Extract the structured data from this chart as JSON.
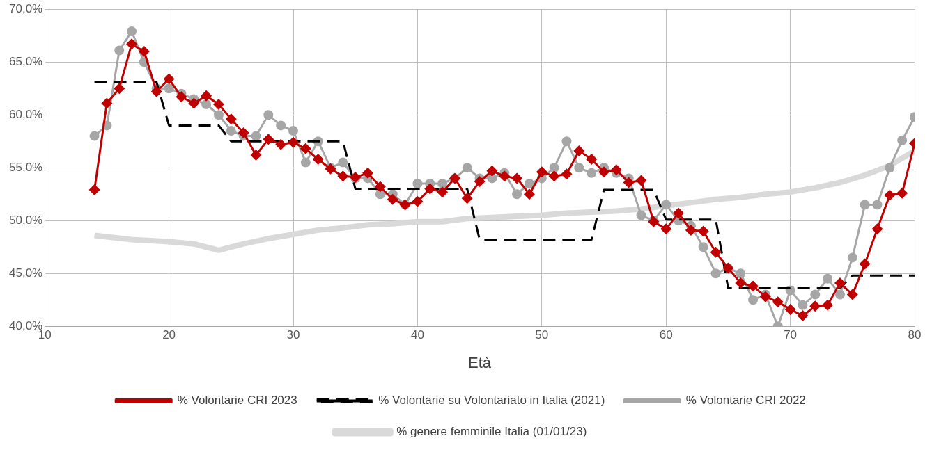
{
  "chart_data": {
    "type": "line",
    "xlabel": "Età",
    "xlim": [
      10,
      80
    ],
    "xticks": [
      10,
      20,
      30,
      40,
      50,
      60,
      70,
      80
    ],
    "ylim": [
      40,
      70
    ],
    "yticks": [
      {
        "value": 40,
        "label": "40,0%"
      },
      {
        "value": 45,
        "label": "45,0%"
      },
      {
        "value": 50,
        "label": "50,0%"
      },
      {
        "value": 55,
        "label": "55,0%"
      },
      {
        "value": 60,
        "label": "60,0%"
      },
      {
        "value": 65,
        "label": "65,0%"
      },
      {
        "value": 70,
        "label": "70,0%"
      }
    ],
    "grid": true,
    "legend": "bottom",
    "x": [
      14,
      15,
      16,
      17,
      18,
      19,
      20,
      21,
      22,
      23,
      24,
      25,
      26,
      27,
      28,
      29,
      30,
      31,
      32,
      33,
      34,
      35,
      36,
      37,
      38,
      39,
      40,
      41,
      42,
      43,
      44,
      45,
      46,
      47,
      48,
      49,
      50,
      51,
      52,
      53,
      54,
      55,
      56,
      57,
      58,
      59,
      60,
      61,
      62,
      63,
      64,
      65,
      66,
      67,
      68,
      69,
      70,
      71,
      72,
      73,
      74,
      75,
      76,
      77,
      78,
      79,
      80
    ],
    "series": [
      {
        "name": "% genere femminile Italia (01/01/23)",
        "color": "#d9d9d9",
        "marker": "none",
        "line_style": "solid",
        "x": [
          14,
          17,
          20,
          22,
          24,
          26,
          28,
          30,
          32,
          34,
          36,
          38,
          40,
          42,
          44,
          46,
          48,
          50,
          52,
          54,
          56,
          58,
          60,
          62,
          64,
          66,
          68,
          70,
          72,
          74,
          76,
          78,
          80
        ],
        "values": [
          48.6,
          48.2,
          48.0,
          47.8,
          47.2,
          47.8,
          48.3,
          48.7,
          49.1,
          49.3,
          49.6,
          49.7,
          49.9,
          49.9,
          50.2,
          50.3,
          50.4,
          50.5,
          50.7,
          50.8,
          50.9,
          51.1,
          51.4,
          51.7,
          52.0,
          52.2,
          52.5,
          52.7,
          53.1,
          53.6,
          54.3,
          55.2,
          56.6
        ]
      },
      {
        "name": "% Volontarie CRI 2022",
        "color": "#a6a6a6",
        "marker": "circle",
        "line_style": "solid",
        "values": [
          58.0,
          59.0,
          66.1,
          67.9,
          65.0,
          62.5,
          62.5,
          62.0,
          61.5,
          61.0,
          60.0,
          58.5,
          58.0,
          58.0,
          60.0,
          59.0,
          58.5,
          55.5,
          57.5,
          55.0,
          55.5,
          54.0,
          54.0,
          52.5,
          52.5,
          51.5,
          53.5,
          53.5,
          53.5,
          54.0,
          55.0,
          54.0,
          54.0,
          54.5,
          52.5,
          53.5,
          54.0,
          55.0,
          57.5,
          55.0,
          54.5,
          55.0,
          54.5,
          54.0,
          50.5,
          50.0,
          51.5,
          50.0,
          49.5,
          47.5,
          45.0,
          45.5,
          45.0,
          42.5,
          43.0,
          40.0,
          43.4,
          42.0,
          43.0,
          44.5,
          43.0,
          46.5,
          51.5,
          51.5,
          55.0,
          57.6,
          59.8
        ]
      },
      {
        "name": "% Volontarie su Volontariato in Italia (2021)",
        "color": "#000000",
        "marker": "none",
        "line_style": "dashed",
        "values": [
          63.1,
          63.1,
          63.1,
          63.1,
          63.1,
          63.1,
          59.0,
          59.0,
          59.0,
          59.0,
          59.0,
          57.5,
          57.5,
          57.5,
          57.5,
          57.5,
          57.5,
          57.5,
          57.5,
          57.5,
          57.5,
          53.0,
          53.0,
          53.0,
          53.0,
          53.0,
          53.0,
          53.0,
          53.0,
          53.0,
          53.0,
          48.2,
          48.2,
          48.2,
          48.2,
          48.2,
          48.2,
          48.2,
          48.2,
          48.2,
          48.2,
          52.9,
          52.9,
          52.9,
          52.9,
          52.9,
          50.1,
          50.1,
          50.1,
          50.1,
          50.1,
          43.6,
          43.6,
          43.6,
          43.6,
          43.6,
          43.6,
          43.6,
          43.6,
          43.6,
          43.6,
          44.8,
          44.8,
          44.8,
          44.8,
          44.8,
          44.8
        ]
      },
      {
        "name": "% Volontarie CRI 2023",
        "color": "#c00000",
        "marker": "diamond",
        "line_style": "solid",
        "values": [
          52.9,
          61.1,
          62.5,
          66.7,
          66.0,
          62.2,
          63.4,
          61.7,
          61.1,
          61.8,
          61.0,
          59.6,
          58.3,
          56.2,
          57.7,
          57.2,
          57.4,
          56.8,
          55.8,
          54.9,
          54.2,
          54.1,
          54.5,
          53.2,
          52.0,
          51.5,
          51.8,
          53.0,
          52.7,
          54.0,
          52.1,
          53.7,
          54.7,
          54.2,
          54.0,
          52.5,
          54.6,
          54.2,
          54.4,
          56.6,
          55.8,
          54.6,
          54.8,
          53.6,
          53.8,
          49.9,
          49.2,
          50.7,
          49.1,
          49.0,
          47.0,
          45.5,
          44.1,
          43.8,
          42.8,
          42.3,
          41.6,
          41.0,
          41.9,
          42.0,
          44.1,
          43.0,
          45.9,
          49.2,
          52.4,
          52.6,
          57.3
        ]
      }
    ]
  }
}
